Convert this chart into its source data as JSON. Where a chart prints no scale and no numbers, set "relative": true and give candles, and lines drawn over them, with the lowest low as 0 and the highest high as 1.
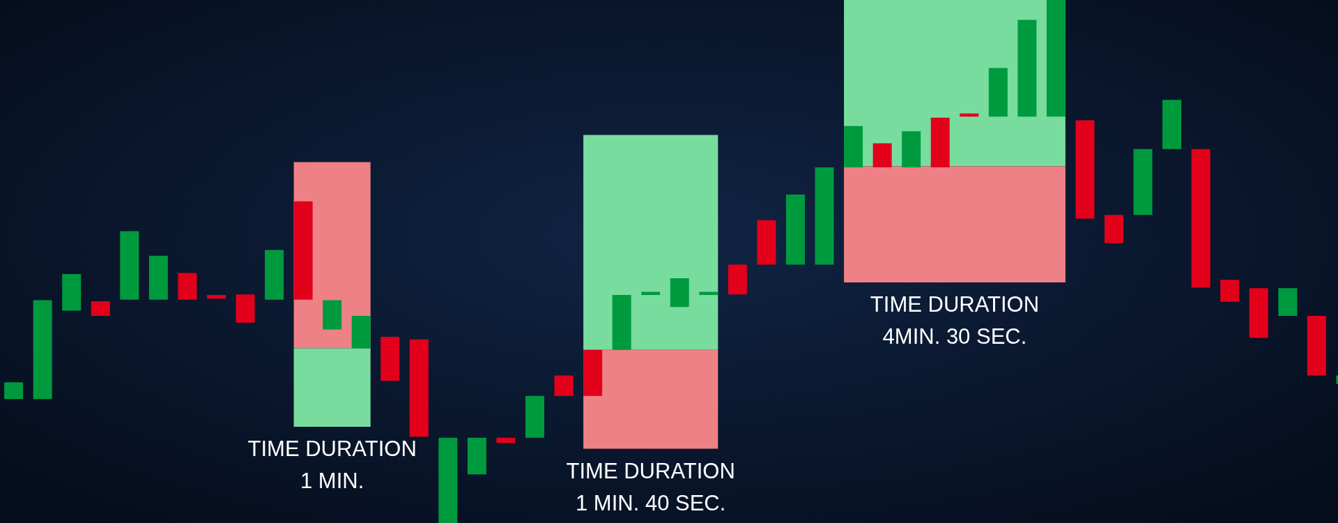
{
  "chart_data": {
    "type": "candlestick",
    "relative": true,
    "categories": [
      null,
      null,
      null,
      null,
      null,
      null,
      null,
      null,
      null,
      null,
      null,
      null,
      null,
      null,
      null,
      null,
      null,
      null,
      null,
      null,
      null,
      null,
      null,
      null,
      null,
      null,
      null,
      null,
      null,
      null,
      null,
      null,
      null,
      null,
      null,
      null,
      null,
      null,
      null,
      null,
      null,
      null,
      null,
      null,
      null,
      null,
      null
    ],
    "ohlc": [
      [
        0.237,
        0.269,
        0.237,
        0.269
      ],
      [
        0.237,
        0.426,
        0.237,
        0.426
      ],
      [
        0.406,
        0.476,
        0.406,
        0.476
      ],
      [
        0.424,
        0.424,
        0.396,
        0.396
      ],
      [
        0.427,
        0.558,
        0.427,
        0.558
      ],
      [
        0.427,
        0.511,
        0.427,
        0.511
      ],
      [
        0.478,
        0.478,
        0.427,
        0.427
      ],
      [
        0.436,
        0.436,
        0.429,
        0.429
      ],
      [
        0.437,
        0.437,
        0.383,
        0.383
      ],
      [
        0.427,
        0.522,
        0.427,
        0.522
      ],
      [
        0.615,
        0.615,
        0.427,
        0.427
      ],
      [
        0.37,
        0.426,
        0.37,
        0.426
      ],
      [
        0.334,
        0.396,
        0.334,
        0.396
      ],
      [
        0.356,
        0.356,
        0.272,
        0.272
      ],
      [
        0.351,
        0.351,
        0.165,
        0.165
      ],
      [
        0,
        0.163,
        0,
        0.163
      ],
      [
        0.093,
        0.163,
        0.093,
        0.163
      ],
      [
        0.163,
        0.163,
        0.153,
        0.153
      ],
      [
        0.163,
        0.243,
        0.163,
        0.243
      ],
      [
        0.282,
        0.282,
        0.243,
        0.243
      ],
      [
        0.331,
        0.331,
        0.243,
        0.243
      ],
      [
        0.331,
        0.436,
        0.331,
        0.436
      ],
      [
        0.436,
        0.442,
        0.436,
        0.442
      ],
      [
        0.413,
        0.468,
        0.413,
        0.468
      ],
      [
        0.436,
        0.442,
        0.436,
        0.442
      ],
      [
        0.494,
        0.494,
        0.437,
        0.437
      ],
      [
        0.579,
        0.579,
        0.494,
        0.494
      ],
      [
        0.494,
        0.628,
        0.494,
        0.628
      ],
      [
        0.494,
        0.68,
        0.494,
        0.68
      ],
      [
        0.68,
        0.759,
        0.68,
        0.759
      ],
      [
        0.726,
        0.726,
        0.68,
        0.68
      ],
      [
        0.68,
        0.749,
        0.68,
        0.749
      ],
      [
        0.775,
        0.775,
        0.68,
        0.68
      ],
      [
        0.783,
        0.783,
        0.777,
        0.777
      ],
      [
        0.777,
        0.87,
        0.777,
        0.87
      ],
      [
        0.777,
        0.962,
        0.777,
        0.962
      ],
      [
        0.777,
        1,
        0.777,
        1
      ],
      [
        0.77,
        0.77,
        0.582,
        0.582
      ],
      [
        0.589,
        0.589,
        0.535,
        0.535
      ],
      [
        0.589,
        0.715,
        0.589,
        0.715
      ],
      [
        0.715,
        0.809,
        0.715,
        0.809
      ],
      [
        0.715,
        0.715,
        0.45,
        0.45
      ],
      [
        0.465,
        0.465,
        0.423,
        0.423
      ],
      [
        0.449,
        0.449,
        0.354,
        0.354
      ],
      [
        0.396,
        0.449,
        0.396,
        0.449
      ],
      [
        0.396,
        0.396,
        0.282,
        0.282
      ],
      [
        0.266,
        0.282,
        0.266,
        0.282
      ]
    ],
    "colors": [
      "#009a3e",
      "#009a3e",
      "#009a3e",
      "#e3001b",
      "#009a3e",
      "#009a3e",
      "#e3001b",
      "#e3001b",
      "#e3001b",
      "#009a3e",
      "#e3001b",
      "#009a3e",
      "#009a3e",
      "#e3001b",
      "#e3001b",
      "#009a3e",
      "#009a3e",
      "#e3001b",
      "#009a3e",
      "#e3001b",
      "#e3001b",
      "#009a3e",
      "#009a3e",
      "#009a3e",
      "#009a3e",
      "#e3001b",
      "#e3001b",
      "#009a3e",
      "#009a3e",
      "#009a3e",
      "#e3001b",
      "#009a3e",
      "#e3001b",
      "#e3001b",
      "#009a3e",
      "#009a3e",
      "#009a3e",
      "#e3001b",
      "#e3001b",
      "#009a3e",
      "#009a3e",
      "#e3001b",
      "#e3001b",
      "#e3001b",
      "#009a3e",
      "#e3001b",
      "#009a3e"
    ],
    "annotations": [
      "TIME DURATION\n1 MIN.",
      "TIME DURATION\n1 MIN. 40 SEC.",
      "TIME DURATION\n4MIN. 30 SEC."
    ]
  }
}
